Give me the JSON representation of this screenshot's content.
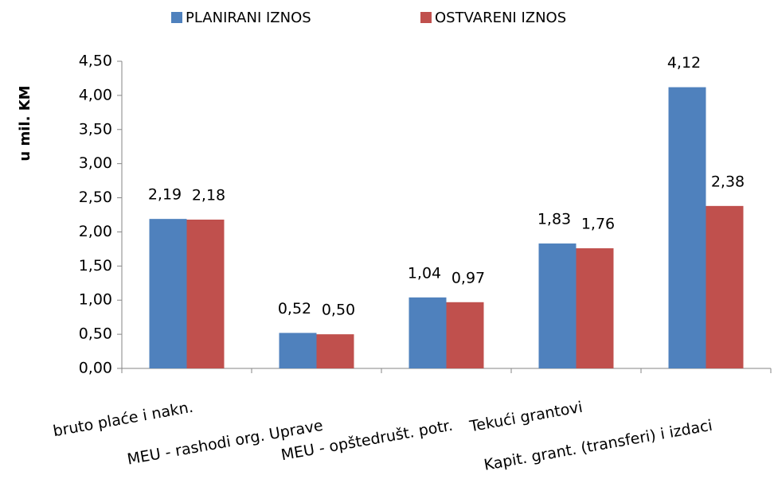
{
  "chart_data": {
    "type": "bar",
    "ylabel": "u mil. KM",
    "categories": [
      "bruto plaće i nakn.",
      "MEU - rashodi org. Uprave",
      "MEU - opštedrušt. potr.",
      "Tekući grantovi",
      "Kapit. grant. (transferi) i izdaci"
    ],
    "series": [
      {
        "name": "PLANIRANI IZNOS",
        "color": "#4f81bd",
        "values": [
          2.19,
          0.52,
          1.04,
          1.83,
          4.12
        ],
        "value_labels": [
          "2,19",
          "0,52",
          "1,04",
          "1,83",
          "4,12"
        ]
      },
      {
        "name": "OSTVARENI IZNOS",
        "color": "#c0504d",
        "values": [
          2.18,
          0.5,
          0.97,
          1.76,
          2.38
        ],
        "value_labels": [
          "2,18",
          "0,50",
          "0,97",
          "1,76",
          "2,38"
        ]
      }
    ],
    "ylim": [
      0,
      4.5
    ],
    "yticks": [
      {
        "value": 0,
        "label": "0,00"
      },
      {
        "value": 0.5,
        "label": "0,50"
      },
      {
        "value": 1,
        "label": "1,00"
      },
      {
        "value": 1.5,
        "label": "1,50"
      },
      {
        "value": 2,
        "label": "2,00"
      },
      {
        "value": 2.5,
        "label": "2,50"
      },
      {
        "value": 3,
        "label": "3,00"
      },
      {
        "value": 3.5,
        "label": "3,50"
      },
      {
        "value": 4,
        "label": "4,00"
      },
      {
        "value": 4.5,
        "label": "4,50"
      }
    ],
    "grid": false,
    "legend": "top"
  }
}
